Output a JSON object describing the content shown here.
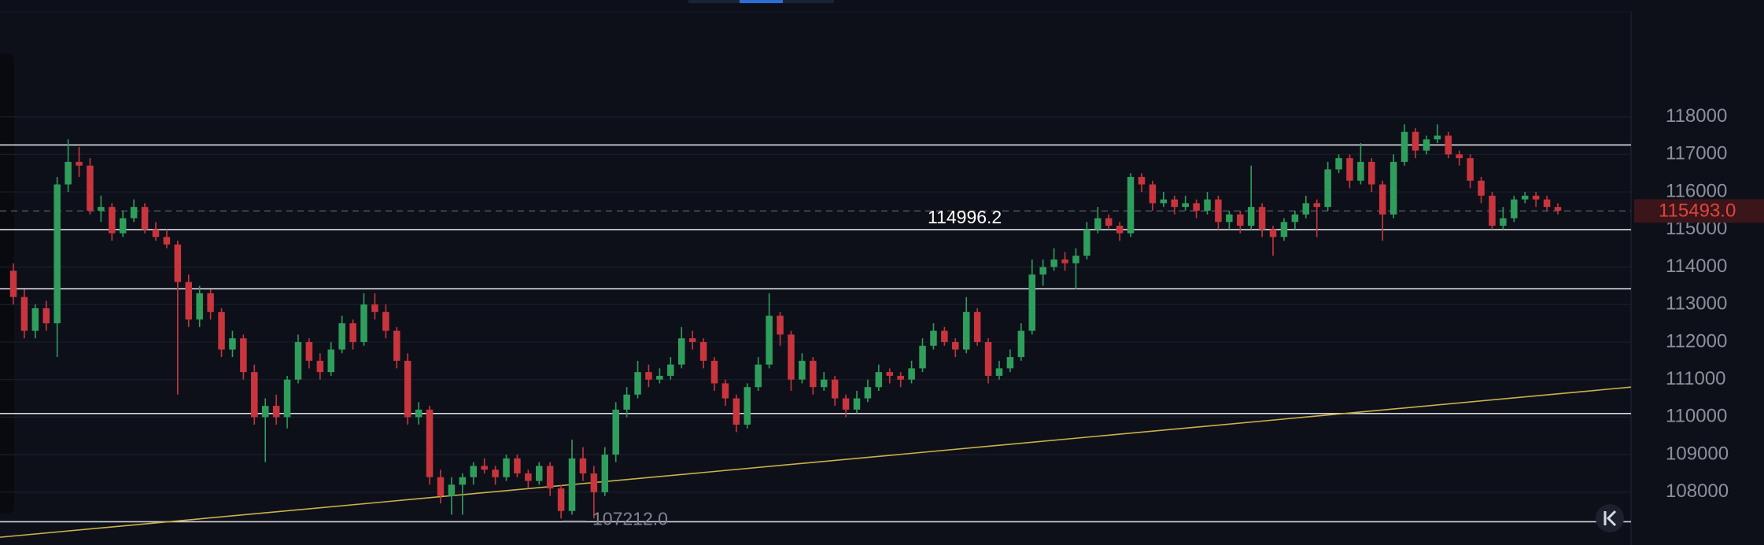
{
  "chart_data": {
    "type": "candlestick",
    "ylim": [
      106593,
      121114
    ],
    "yticks": [
      108000,
      109000,
      110000,
      111000,
      112000,
      113000,
      114000,
      115000,
      116000,
      117000,
      118000
    ],
    "grid": true,
    "up_color": "#2f9e5c",
    "down_color": "#c9353d",
    "candles": [
      [
        113900,
        114100,
        113000,
        113200
      ],
      [
        113200,
        113400,
        112100,
        112300
      ],
      [
        112300,
        113000,
        112100,
        112900
      ],
      [
        112900,
        113100,
        112300,
        112500
      ],
      [
        112500,
        116400,
        111600,
        116200
      ],
      [
        116200,
        117400,
        116000,
        116800
      ],
      [
        116800,
        117200,
        116400,
        116700
      ],
      [
        116700,
        116900,
        115400,
        115500
      ],
      [
        115500,
        115900,
        115200,
        115600
      ],
      [
        115600,
        115700,
        114700,
        114900
      ],
      [
        114900,
        115500,
        114800,
        115300
      ],
      [
        115300,
        115800,
        115200,
        115600
      ],
      [
        115600,
        115700,
        114900,
        115000
      ],
      [
        115000,
        115200,
        114700,
        114800
      ],
      [
        114800,
        115000,
        114500,
        114600
      ],
      [
        114600,
        114700,
        110600,
        113600
      ],
      [
        113600,
        113800,
        112400,
        112600
      ],
      [
        112600,
        113500,
        112400,
        113300
      ],
      [
        113300,
        113400,
        112600,
        112800
      ],
      [
        112800,
        112900,
        111600,
        111800
      ],
      [
        111800,
        112300,
        111600,
        112100
      ],
      [
        112100,
        112200,
        111000,
        111200
      ],
      [
        111200,
        111400,
        109800,
        110000
      ],
      [
        110000,
        110500,
        108800,
        110300
      ],
      [
        110300,
        110600,
        109800,
        110000
      ],
      [
        110000,
        111100,
        109700,
        111000
      ],
      [
        111000,
        112200,
        110900,
        112000
      ],
      [
        112000,
        112100,
        111300,
        111500
      ],
      [
        111500,
        111700,
        111000,
        111200
      ],
      [
        111200,
        112000,
        111100,
        111800
      ],
      [
        111800,
        112700,
        111700,
        112500
      ],
      [
        112500,
        112600,
        111800,
        112000
      ],
      [
        112000,
        113300,
        111900,
        113000
      ],
      [
        113000,
        113300,
        112600,
        112800
      ],
      [
        112800,
        113000,
        112100,
        112300
      ],
      [
        112300,
        112400,
        111300,
        111500
      ],
      [
        111500,
        111700,
        109800,
        110000
      ],
      [
        110000,
        110400,
        109800,
        110200
      ],
      [
        110200,
        110300,
        108200,
        108400
      ],
      [
        108400,
        108600,
        107700,
        107900
      ],
      [
        107900,
        108400,
        107400,
        108200
      ],
      [
        108200,
        108500,
        107400,
        108400
      ],
      [
        108400,
        108800,
        108200,
        108700
      ],
      [
        108700,
        108900,
        108500,
        108600
      ],
      [
        108600,
        108700,
        108200,
        108400
      ],
      [
        108400,
        109000,
        108300,
        108900
      ],
      [
        108900,
        109000,
        108400,
        108500
      ],
      [
        108500,
        108600,
        108100,
        108300
      ],
      [
        108300,
        108800,
        108200,
        108700
      ],
      [
        108700,
        108800,
        107900,
        108100
      ],
      [
        108100,
        108200,
        107300,
        107500
      ],
      [
        107500,
        109400,
        107400,
        108900
      ],
      [
        108900,
        109200,
        108300,
        108500
      ],
      [
        108500,
        108700,
        107300,
        108000
      ],
      [
        108000,
        109200,
        107900,
        109000
      ],
      [
        109000,
        110400,
        108800,
        110200
      ],
      [
        110200,
        110800,
        110000,
        110600
      ],
      [
        110600,
        111500,
        110500,
        111200
      ],
      [
        111200,
        111400,
        110800,
        111000
      ],
      [
        111000,
        111300,
        110900,
        111100
      ],
      [
        111100,
        111600,
        111000,
        111400
      ],
      [
        111400,
        112400,
        111300,
        112100
      ],
      [
        112100,
        112300,
        111800,
        112000
      ],
      [
        112000,
        112100,
        111300,
        111500
      ],
      [
        111500,
        111600,
        110700,
        110900
      ],
      [
        110900,
        111000,
        110300,
        110500
      ],
      [
        110500,
        110600,
        109600,
        109800
      ],
      [
        109800,
        110900,
        109700,
        110800
      ],
      [
        110800,
        111600,
        110700,
        111400
      ],
      [
        111400,
        113300,
        111300,
        112700
      ],
      [
        112700,
        112800,
        111900,
        112200
      ],
      [
        112200,
        112300,
        110700,
        111000
      ],
      [
        111000,
        111700,
        110900,
        111500
      ],
      [
        111500,
        111600,
        110600,
        110800
      ],
      [
        110800,
        111200,
        110700,
        111000
      ],
      [
        111000,
        111100,
        110300,
        110500
      ],
      [
        110500,
        110600,
        110000,
        110200
      ],
      [
        110200,
        110700,
        110100,
        110500
      ],
      [
        110500,
        111000,
        110400,
        110800
      ],
      [
        110800,
        111400,
        110700,
        111200
      ],
      [
        111200,
        111300,
        110900,
        111100
      ],
      [
        111100,
        111200,
        110800,
        111000
      ],
      [
        111000,
        111500,
        110900,
        111300
      ],
      [
        111300,
        112100,
        111200,
        111900
      ],
      [
        111900,
        112500,
        111800,
        112300
      ],
      [
        112300,
        112400,
        111900,
        112000
      ],
      [
        112000,
        112100,
        111600,
        111800
      ],
      [
        111800,
        113200,
        111700,
        112800
      ],
      [
        112800,
        112900,
        111900,
        112000
      ],
      [
        112000,
        112100,
        110900,
        111100
      ],
      [
        111100,
        111500,
        111000,
        111300
      ],
      [
        111300,
        111800,
        111200,
        111600
      ],
      [
        111600,
        112500,
        111500,
        112300
      ],
      [
        112300,
        114200,
        112200,
        113800
      ],
      [
        113800,
        114200,
        113500,
        114000
      ],
      [
        114000,
        114500,
        113900,
        114200
      ],
      [
        114200,
        114400,
        113900,
        114100
      ],
      [
        114100,
        114500,
        113400,
        114300
      ],
      [
        114300,
        115200,
        114200,
        115000
      ],
      [
        115000,
        115600,
        114900,
        115300
      ],
      [
        115300,
        115400,
        115000,
        115100
      ],
      [
        115100,
        115200,
        114700,
        114900
      ],
      [
        114900,
        116500,
        114800,
        116400
      ],
      [
        116400,
        116500,
        116000,
        116200
      ],
      [
        116200,
        116300,
        115500,
        115700
      ],
      [
        115700,
        116000,
        115600,
        115800
      ],
      [
        115800,
        115900,
        115400,
        115600
      ],
      [
        115600,
        115900,
        115500,
        115700
      ],
      [
        115700,
        115800,
        115300,
        115500
      ],
      [
        115500,
        116000,
        115400,
        115800
      ],
      [
        115800,
        115900,
        115000,
        115200
      ],
      [
        115200,
        115500,
        115000,
        115400
      ],
      [
        115400,
        115500,
        114900,
        115100
      ],
      [
        115100,
        116700,
        115000,
        115600
      ],
      [
        115600,
        115700,
        114800,
        115000
      ],
      [
        115000,
        115100,
        114300,
        114800
      ],
      [
        114800,
        115300,
        114700,
        115200
      ],
      [
        115200,
        115500,
        115000,
        115400
      ],
      [
        115400,
        115900,
        115300,
        115700
      ],
      [
        115700,
        115800,
        114800,
        115600
      ],
      [
        115600,
        116800,
        115500,
        116600
      ],
      [
        116600,
        117000,
        116500,
        116900
      ],
      [
        116900,
        117000,
        116100,
        116300
      ],
      [
        116300,
        117300,
        116200,
        116800
      ],
      [
        116800,
        116900,
        116000,
        116200
      ],
      [
        116200,
        116300,
        114700,
        115400
      ],
      [
        115400,
        117000,
        115300,
        116800
      ],
      [
        116800,
        117800,
        116700,
        117600
      ],
      [
        117600,
        117700,
        116900,
        117100
      ],
      [
        117100,
        117500,
        117000,
        117400
      ],
      [
        117400,
        117800,
        117300,
        117500
      ],
      [
        117500,
        117600,
        116900,
        117000
      ],
      [
        117000,
        117100,
        116700,
        116900
      ],
      [
        116900,
        117000,
        116100,
        116300
      ],
      [
        116300,
        116400,
        115700,
        115900
      ],
      [
        115900,
        116000,
        115000,
        115100
      ],
      [
        115100,
        115600,
        115000,
        115300
      ],
      [
        115300,
        115900,
        115200,
        115800
      ],
      [
        115800,
        116000,
        115700,
        115900
      ],
      [
        115900,
        116000,
        115600,
        115800
      ],
      [
        115800,
        115900,
        115500,
        115600
      ],
      [
        115600,
        115700,
        115400,
        115500
      ]
    ],
    "levels": [
      {
        "value": 117251
      },
      {
        "value": 114996.2,
        "label": "114996.2"
      },
      {
        "value": 113419
      },
      {
        "value": 110096
      },
      {
        "value": 107212,
        "label": "107212.0"
      }
    ],
    "trendline": {
      "start": 106800,
      "end": 110800,
      "color": "#c9b24a"
    },
    "last_price": {
      "value": 115493,
      "label": "115493.0",
      "color": "#e0443e"
    }
  }
}
